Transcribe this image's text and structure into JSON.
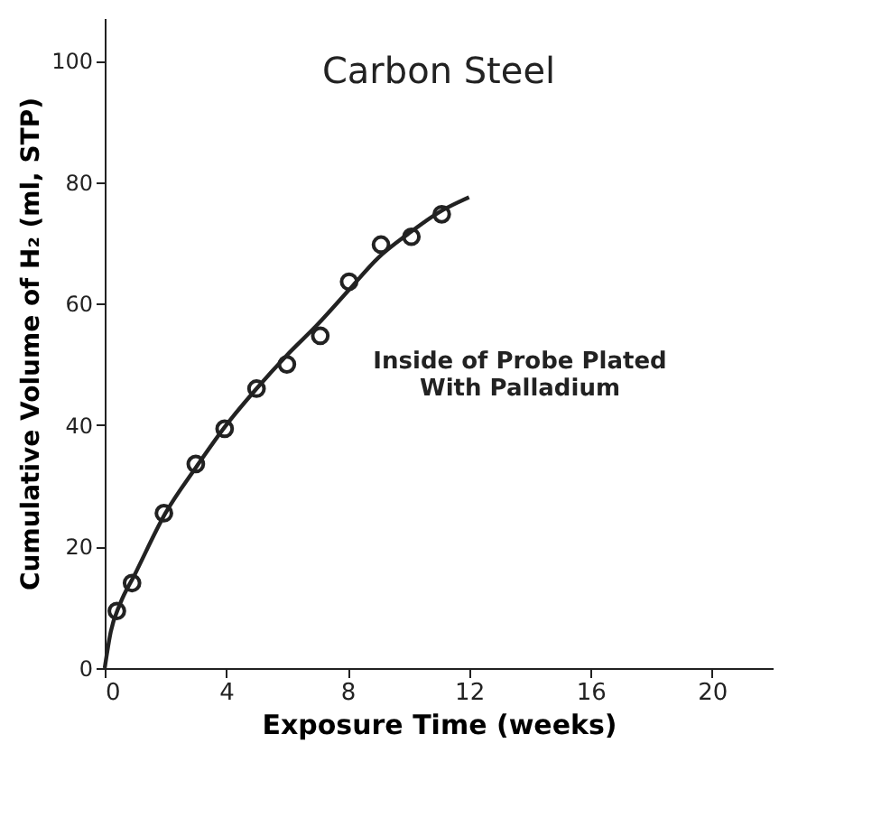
{
  "chart_data": {
    "type": "scatter",
    "title": "Carbon Steel",
    "xlabel": "Exposure Time (weeks)",
    "ylabel": "Cumulative Volume of H₂ (ml, STP)",
    "xlim": [
      0,
      22
    ],
    "ylim": [
      0,
      107
    ],
    "xticks": [
      0,
      4,
      8,
      12,
      16,
      20
    ],
    "yticks": [
      0,
      20,
      40,
      60,
      80,
      100
    ],
    "grid": false,
    "annotations": [
      "Inside of Probe Plated\nWith Palladium"
    ],
    "series": [
      {
        "marker": "circle",
        "color": "#222222",
        "x": [
          0.4,
          0.9,
          1.95,
          3.0,
          3.95,
          5.0,
          6.0,
          7.1,
          8.05,
          9.1,
          10.1,
          11.1
        ],
        "values": [
          9.4,
          14,
          25.5,
          33.6,
          39.4,
          46,
          50,
          54.7,
          63.6,
          69.7,
          71,
          74.7
        ]
      },
      {
        "type": "line",
        "color": "#222222",
        "x": [
          0,
          0.2,
          0.5,
          1,
          2,
          3,
          4,
          5,
          6,
          7,
          8,
          9,
          10,
          11,
          12
        ],
        "values": [
          0,
          6,
          10.5,
          15.5,
          25.5,
          33,
          40,
          46,
          51.5,
          56.5,
          62,
          67.5,
          71.5,
          75,
          77.5
        ]
      }
    ]
  }
}
